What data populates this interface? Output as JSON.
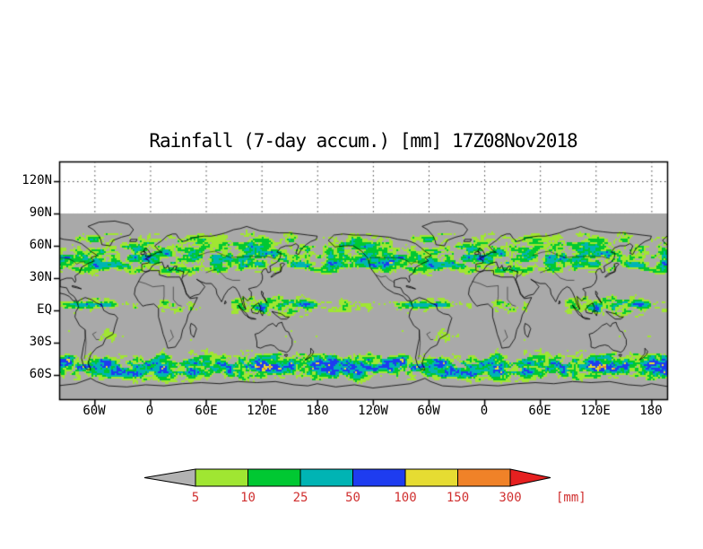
{
  "title": "Rainfall (7-day accum.) [mm] 17Z08Nov2018",
  "axes": {
    "lat_labels": [
      "120N",
      "90N",
      "60N",
      "30N",
      "EQ",
      "30S",
      "60S"
    ],
    "lat_values": [
      120,
      90,
      60,
      30,
      0,
      -30,
      -60
    ],
    "lon_labels": [
      "60W",
      "0",
      "60E",
      "120E",
      "180",
      "120W",
      "60W",
      "0",
      "60E",
      "120E",
      "180"
    ],
    "lon_values": [
      -60,
      0,
      60,
      120,
      180,
      240,
      300,
      360,
      420,
      480,
      540
    ]
  },
  "colorbar": {
    "units_label": "[mm]",
    "boundary_labels": [
      "5",
      "10",
      "25",
      "50",
      "100",
      "150",
      "300"
    ],
    "levels": [
      5,
      10,
      25,
      50,
      100,
      150,
      300
    ],
    "below_color": "#b2b2b2",
    "segment_colors": [
      "#a0e632",
      "#00c832",
      "#00b4b4",
      "#1e3cf0",
      "#e6dc32",
      "#f08228"
    ],
    "above_color": "#e62020",
    "label_color": "#d03030"
  },
  "map": {
    "no_data_color": "#a9a9a9",
    "coastline_color": "#000000",
    "grid_color": "#444444"
  },
  "chart_data": {
    "type": "heatmap",
    "title": "Rainfall (7-day accum.) [mm] 17Z08Nov2018",
    "variable": "Rainfall (7-day accum.)",
    "units": "mm",
    "valid_time": "17Z08Nov2018",
    "colorbar_levels": [
      5,
      10,
      25,
      50,
      100,
      150,
      300
    ],
    "lat_ticks": [
      "120N",
      "90N",
      "60N",
      "30N",
      "EQ",
      "30S",
      "60S"
    ],
    "lon_ticks": [
      "60W",
      "0",
      "60E",
      "120E",
      "180",
      "120W",
      "60W",
      "0",
      "60E",
      "120E",
      "180"
    ],
    "legend_position": "bottom",
    "grid": "dotted"
  }
}
